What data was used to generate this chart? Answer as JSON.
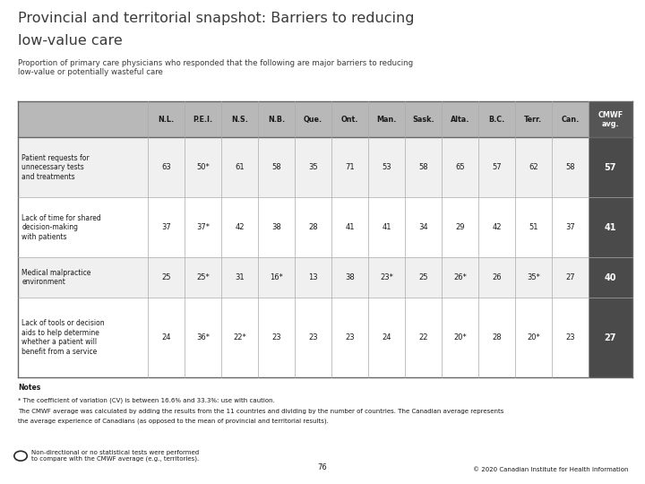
{
  "title_line1": "Provincial and territorial snapshot: Barriers to reducing",
  "title_line2": "low-value care",
  "subtitle": "Proportion of primary care physicians who responded that the following are major barriers to reducing\nlow-value or potentially wasteful care",
  "columns": [
    "N.L.",
    "P.E.I.",
    "N.S.",
    "N.B.",
    "Que.",
    "Ont.",
    "Man.",
    "Sask.",
    "Alta.",
    "B.C.",
    "Terr.",
    "Can.",
    "CMWF\navg."
  ],
  "rows": [
    {
      "label": "Patient requests for\nunnecessary tests\nand treatments",
      "values": [
        "63",
        "50*",
        "61",
        "58",
        "35",
        "71",
        "53",
        "58",
        "65",
        "57",
        "62",
        "58",
        "57"
      ]
    },
    {
      "label": "Lack of time for shared\ndecision-making\nwith patients",
      "values": [
        "37",
        "37*",
        "42",
        "38",
        "28",
        "41",
        "41",
        "34",
        "29",
        "42",
        "51",
        "37",
        "41"
      ]
    },
    {
      "label": "Medical malpractice\nenvironment",
      "values": [
        "25",
        "25*",
        "31",
        "16*",
        "13",
        "38",
        "23*",
        "25",
        "26*",
        "26",
        "35*",
        "27",
        "40"
      ]
    },
    {
      "label": "Lack of tools or decision\naids to help determine\nwhether a patient will\nbenefit from a service",
      "values": [
        "24",
        "36*",
        "22*",
        "23",
        "23",
        "23",
        "24",
        "22",
        "20*",
        "28",
        "20*",
        "23",
        "27"
      ]
    }
  ],
  "header_bg": "#b8b8b8",
  "cmwf_header_bg": "#555555",
  "cmwf_cell_bg": "#4a4a4a",
  "cmwf_text_color": "#ffffff",
  "row_bg_alt": "#f0f0f0",
  "row_bg_norm": "#ffffff",
  "notes_line1": "Notes",
  "notes_line2": "* The coefficient of variation (CV) is between 16.6% and 33.3%: use with caution.",
  "notes_line3": "The CMWF average was calculated by adding the results from the 11 countries and dividing by the number of countries. The Canadian average represents",
  "notes_line4": "the average experience of Canadians (as opposed to the mean of provincial and territorial results).",
  "footer_left": "Non-directional or no statistical tests were performed\nto compare with the CMWF average (e.g., territories).",
  "footer_center": "76",
  "footer_right": "© 2020 Canadian Institute for Health Information",
  "background_color": "#ffffff"
}
